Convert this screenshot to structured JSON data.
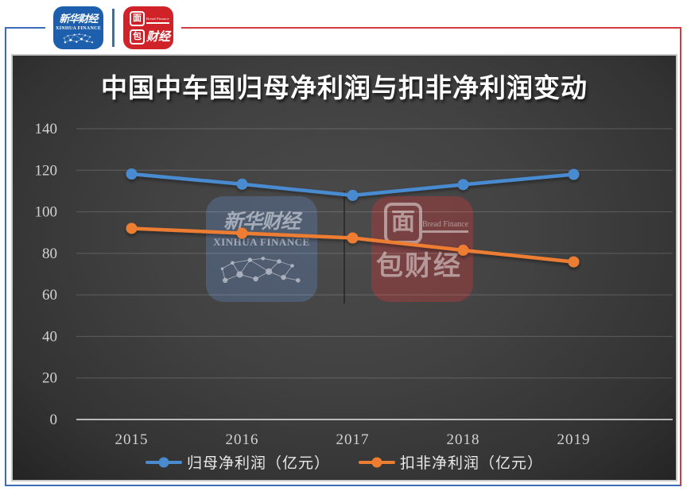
{
  "header": {
    "xinhua_logo": {
      "cn": "新华财经",
      "en": "XINHUA FINANCE",
      "bg": "#1D5FAC"
    },
    "bread_logo": {
      "box_char": "面",
      "box_char2": "包",
      "cn_rest": "财经",
      "en": "Bread Finance",
      "bg": "#CF2329"
    },
    "frame": {
      "blue": "#3A6DB5",
      "red": "#D43B40"
    }
  },
  "chart_data": {
    "type": "line",
    "title": "中国中车国归母净利润与扣非净利润变动",
    "categories": [
      "2015",
      "2016",
      "2017",
      "2018",
      "2019"
    ],
    "series": [
      {
        "name": "归母净利润（亿元）",
        "color": "#4A8BD0",
        "values": [
          118.2,
          113.3,
          107.9,
          113.1,
          118.0
        ]
      },
      {
        "name": "扣非净利润（亿元）",
        "color": "#ED7D31",
        "values": [
          92.0,
          89.7,
          87.4,
          81.5,
          75.9
        ]
      }
    ],
    "xlabel": "",
    "ylabel": "",
    "ylim": [
      0,
      140
    ],
    "ytick_step": 20,
    "yticks": [
      "0",
      "20",
      "40",
      "60",
      "80",
      "100",
      "120",
      "140"
    ],
    "grid": true,
    "legend_position": "bottom",
    "panel_style": "dark",
    "tick_color": "#D2D2D2"
  },
  "watermarks": {
    "xinhua": {
      "cn": "新华财经",
      "en": "XINHUA FINANCE"
    },
    "bread": {
      "box_char": "面",
      "box_char2": "包",
      "cn_rest": "财经",
      "en": "Bread Finance"
    }
  }
}
